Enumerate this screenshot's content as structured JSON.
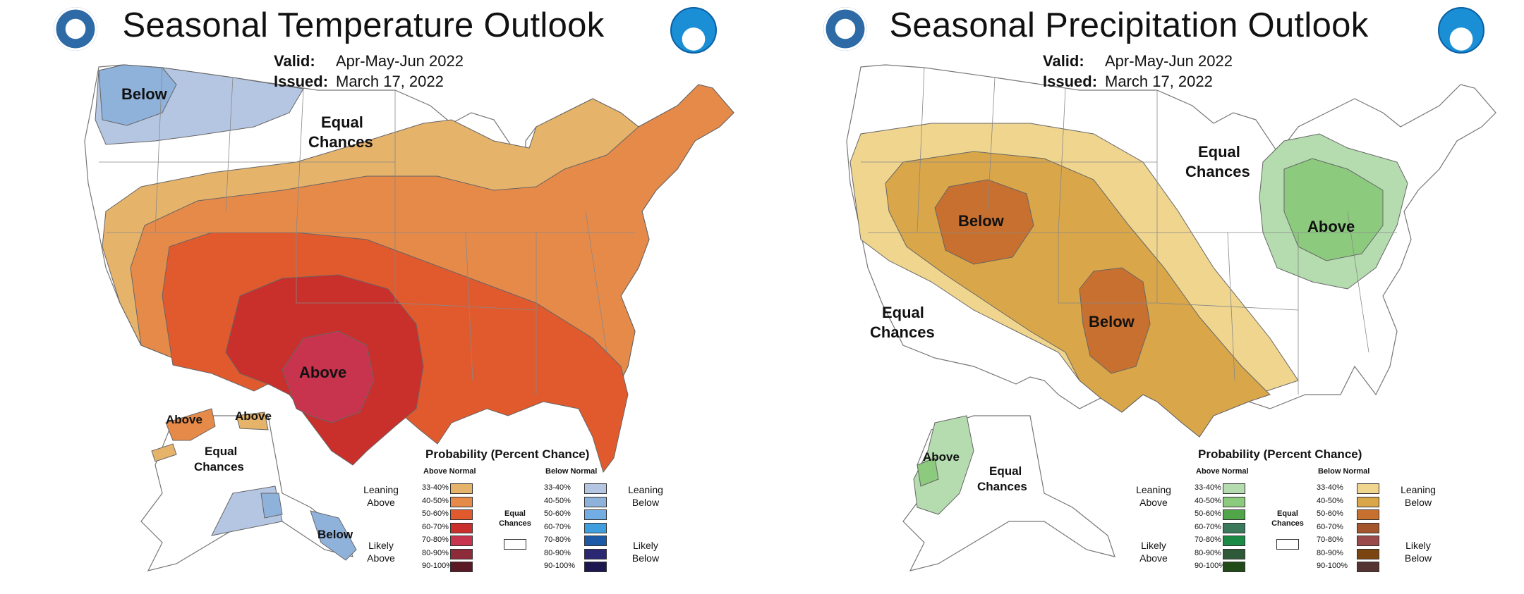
{
  "panels": [
    {
      "title": "Seasonal Temperature Outlook",
      "valid_label": "Valid:",
      "valid_value": "Apr-May-Jun 2022",
      "issued_label": "Issued:",
      "issued_value": "March 17, 2022",
      "map_labels": {
        "nw_below": "Below",
        "equal_chances_1": "Equal",
        "equal_chances_2": "Chances",
        "south_above": "Above",
        "ak_above_west": "Above",
        "ak_above_east": "Above",
        "ak_equal_1": "Equal",
        "ak_equal_2": "Chances",
        "ak_below": "Below"
      },
      "legend": {
        "title": "Probability (Percent Chance)",
        "left_head": "Above Normal",
        "right_head": "Below Normal",
        "rows": [
          "33-40%",
          "40-50%",
          "50-60%",
          "60-70%",
          "70-80%",
          "80-90%",
          "90-100%"
        ],
        "left_colors": [
          "#e6b36b",
          "#e68a4a",
          "#e05a2e",
          "#c92f2b",
          "#c8334e",
          "#8e2b3a",
          "#5a1a25"
        ],
        "right_colors": [
          "#b5c6e3",
          "#8fb2db",
          "#72aee3",
          "#3f9ede",
          "#1c5aa8",
          "#2a2873",
          "#1c174f"
        ],
        "left_group_1": [
          "Leaning",
          "Above"
        ],
        "left_group_2": [
          "Likely",
          "Above"
        ],
        "right_group_1": [
          "Leaning",
          "Below"
        ],
        "right_group_2": [
          "Likely",
          "Below"
        ],
        "equal_1": "Equal",
        "equal_2": "Chances"
      }
    },
    {
      "title": "Seasonal Precipitation Outlook",
      "valid_label": "Valid:",
      "valid_value": "Apr-May-Jun 2022",
      "issued_label": "Issued:",
      "issued_value": "March 17, 2022",
      "map_labels": {
        "equal_chances_ne_1": "Equal",
        "equal_chances_ne_2": "Chances",
        "west_below": "Below",
        "central_below": "Below",
        "east_above": "Above",
        "equal_chances_sw_1": "Equal",
        "equal_chances_sw_2": "Chances",
        "ak_above": "Above",
        "ak_equal_1": "Equal",
        "ak_equal_2": "Chances"
      },
      "legend": {
        "title": "Probability (Percent Chance)",
        "left_head": "Above Normal",
        "right_head": "Below Normal",
        "rows": [
          "33-40%",
          "40-50%",
          "50-60%",
          "60-70%",
          "70-80%",
          "80-90%",
          "90-100%"
        ],
        "left_colors": [
          "#b4dcae",
          "#8ccb7e",
          "#4fa548",
          "#3a7a5a",
          "#1a8a45",
          "#2f5a3a",
          "#214a19"
        ],
        "right_colors": [
          "#f0d58f",
          "#d9a64a",
          "#c8702f",
          "#a3552b",
          "#9a4a4a",
          "#7a4510",
          "#553333"
        ],
        "left_group_1": [
          "Leaning",
          "Above"
        ],
        "left_group_2": [
          "Likely",
          "Above"
        ],
        "right_group_1": [
          "Leaning",
          "Below"
        ],
        "right_group_2": [
          "Likely",
          "Below"
        ],
        "equal_1": "Equal",
        "equal_2": "Chances"
      }
    }
  ]
}
